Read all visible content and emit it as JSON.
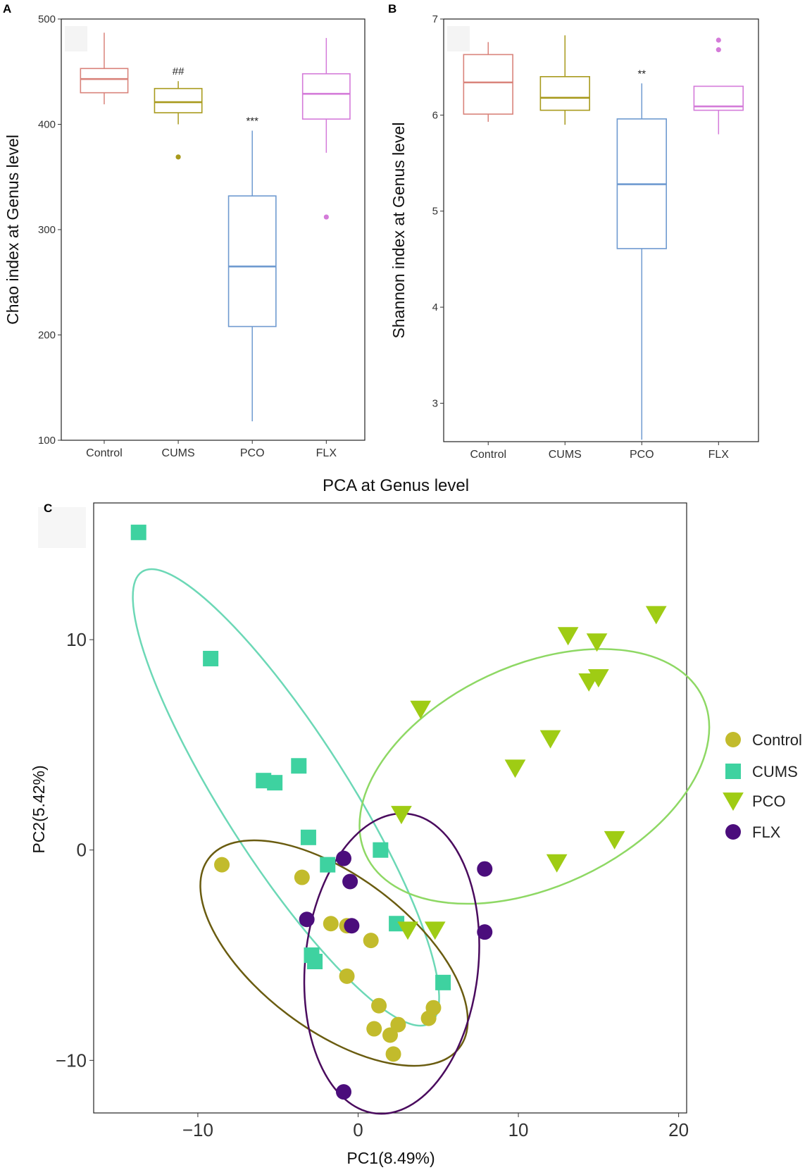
{
  "panels": {
    "a": {
      "letter": "A"
    },
    "b": {
      "letter": "B"
    },
    "c": {
      "letter": "C"
    }
  },
  "chart_data": [
    {
      "id": "panelA",
      "type": "box",
      "ylabel": "Chao index at Genus level",
      "ylim": [
        100,
        500
      ],
      "yticks": [
        100,
        200,
        300,
        400,
        500
      ],
      "categories": [
        "Control",
        "CUMS",
        "PCO",
        "FLX"
      ],
      "colors": [
        "#d9837b",
        "#a89a1c",
        "#6f9ad0",
        "#d47bd9"
      ],
      "boxes": [
        {
          "name": "Control",
          "whisker_low": 419,
          "q1": 430,
          "median": 443,
          "q3": 453,
          "whisker_high": 487,
          "outliers": [],
          "annotation": ""
        },
        {
          "name": "CUMS",
          "whisker_low": 400,
          "q1": 411,
          "median": 421,
          "q3": 434,
          "whisker_high": 441,
          "outliers": [
            369
          ],
          "annotation": "##"
        },
        {
          "name": "PCO",
          "whisker_low": 118,
          "q1": 208,
          "median": 265,
          "q3": 332,
          "whisker_high": 394,
          "outliers": [],
          "annotation": "***"
        },
        {
          "name": "FLX",
          "whisker_low": 373,
          "q1": 405,
          "median": 429,
          "q3": 448,
          "whisker_high": 482,
          "outliers": [
            312
          ],
          "annotation": ""
        }
      ]
    },
    {
      "id": "panelB",
      "type": "box",
      "ylabel": "Shannon index at Genus level",
      "ylim": [
        2.6,
        7.0
      ],
      "yticks": [
        3,
        4,
        5,
        6,
        7
      ],
      "categories": [
        "Control",
        "CUMS",
        "PCO",
        "FLX"
      ],
      "colors": [
        "#d9837b",
        "#a89a1c",
        "#6f9ad0",
        "#d47bd9"
      ],
      "boxes": [
        {
          "name": "Control",
          "whisker_low": 5.93,
          "q1": 6.01,
          "median": 6.34,
          "q3": 6.63,
          "whisker_high": 6.76,
          "outliers": [],
          "annotation": ""
        },
        {
          "name": "CUMS",
          "whisker_low": 5.9,
          "q1": 6.05,
          "median": 6.18,
          "q3": 6.4,
          "whisker_high": 6.83,
          "outliers": [],
          "annotation": ""
        },
        {
          "name": "PCO",
          "whisker_low": 2.62,
          "q1": 4.61,
          "median": 5.28,
          "q3": 5.96,
          "whisker_high": 6.33,
          "outliers": [],
          "annotation": "**"
        },
        {
          "name": "FLX",
          "whisker_low": 5.8,
          "q1": 6.05,
          "median": 6.09,
          "q3": 6.3,
          "whisker_high": 6.3,
          "outliers": [
            6.68,
            6.78
          ],
          "annotation": ""
        }
      ]
    },
    {
      "id": "panelC",
      "type": "scatter",
      "title": "PCA at Genus level",
      "xlabel": "PC1(8.49%)",
      "ylabel": "PC2(5.42%)",
      "xlim": [
        -16.5,
        20.5
      ],
      "ylim": [
        -12.5,
        16.5
      ],
      "xticks": [
        -10,
        0,
        10,
        20
      ],
      "yticks": [
        -10,
        0,
        10
      ],
      "series": [
        {
          "name": "Control",
          "shape": "circle",
          "color": "#c2bb2c",
          "points": [
            [
              -8.5,
              -0.7
            ],
            [
              -3.5,
              -1.3
            ],
            [
              -1.7,
              -3.5
            ],
            [
              -0.7,
              -3.6
            ],
            [
              0.8,
              -4.3
            ],
            [
              -0.7,
              -6.0
            ],
            [
              1.3,
              -7.4
            ],
            [
              1.0,
              -8.5
            ],
            [
              2.5,
              -8.3
            ],
            [
              2.0,
              -8.8
            ],
            [
              2.2,
              -9.7
            ],
            [
              4.7,
              -7.5
            ],
            [
              4.4,
              -8.0
            ]
          ]
        },
        {
          "name": "CUMS",
          "shape": "square",
          "color": "#3ed2a0",
          "points": [
            [
              -13.7,
              15.1
            ],
            [
              -9.2,
              9.1
            ],
            [
              -5.9,
              3.3
            ],
            [
              -5.2,
              3.2
            ],
            [
              -3.7,
              4.0
            ],
            [
              -3.1,
              0.6
            ],
            [
              -1.9,
              -0.7
            ],
            [
              1.4,
              0.0
            ],
            [
              -2.9,
              -5.0
            ],
            [
              -2.7,
              -5.3
            ],
            [
              2.4,
              -3.5
            ],
            [
              5.3,
              -6.3
            ]
          ]
        },
        {
          "name": "PCO",
          "shape": "triangle-down",
          "color": "#9fcc14",
          "points": [
            [
              18.6,
              11.2
            ],
            [
              13.1,
              10.2
            ],
            [
              14.9,
              9.9
            ],
            [
              14.4,
              8.0
            ],
            [
              15.0,
              8.2
            ],
            [
              3.9,
              6.7
            ],
            [
              12.0,
              5.3
            ],
            [
              9.8,
              3.9
            ],
            [
              2.7,
              1.7
            ],
            [
              16.0,
              0.5
            ],
            [
              12.4,
              -0.6
            ],
            [
              3.1,
              -3.8
            ],
            [
              4.8,
              -3.8
            ]
          ]
        },
        {
          "name": "FLX",
          "shape": "circle",
          "color": "#4b0d7c",
          "points": [
            [
              -0.9,
              -0.4
            ],
            [
              -0.5,
              -1.5
            ],
            [
              -3.2,
              -3.3
            ],
            [
              -0.4,
              -3.6
            ],
            [
              7.9,
              -0.9
            ],
            [
              7.9,
              -3.9
            ],
            [
              -0.9,
              -11.5
            ]
          ]
        }
      ],
      "ellipses": [
        {
          "group": "CUMS",
          "color": "#6cd8b6",
          "cx": -4.5,
          "cy": 2.5,
          "rx": 16.7,
          "ry": 3.9,
          "angle_deg": -57.5
        },
        {
          "group": "PCO",
          "color": "#8ed864",
          "cx": 11.0,
          "cy": 3.5,
          "rx": 11.6,
          "ry": 6.9,
          "angle_deg": 25
        },
        {
          "group": "Control",
          "color": "#6a5c10",
          "cx": -1.5,
          "cy": -4.9,
          "rx": 9.8,
          "ry": 4.8,
          "angle_deg": -37
        },
        {
          "group": "FLX",
          "color": "#4a0b5e",
          "cx": 2.1,
          "cy": -5.4,
          "rx": 9.4,
          "ry": 5.4,
          "angle_deg": 84
        }
      ],
      "legend": {
        "position": "right",
        "entries": [
          "Control",
          "CUMS",
          "PCO",
          "FLX"
        ]
      }
    }
  ]
}
